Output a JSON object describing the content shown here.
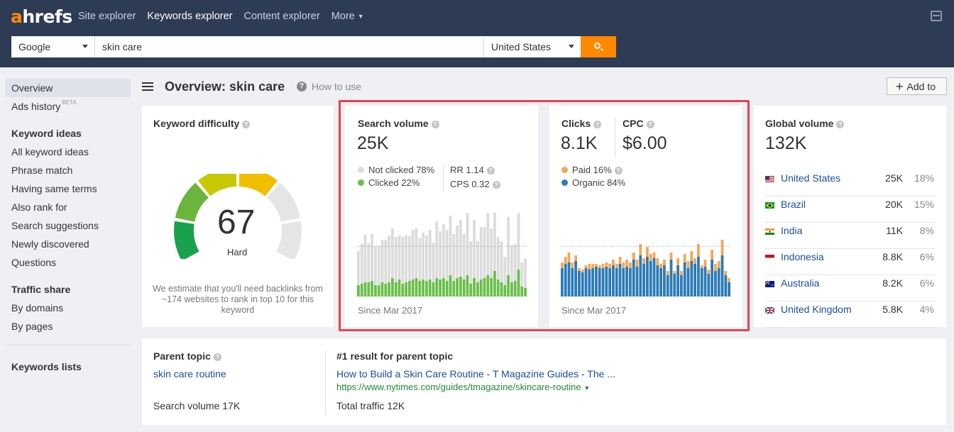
{
  "brand": {
    "logo_accent": "a",
    "logo_rest": "hrefs"
  },
  "nav": {
    "items": [
      "Site explorer",
      "Keywords explorer",
      "Content explorer",
      "More"
    ]
  },
  "search": {
    "engine": "Google",
    "keyword": "skin care",
    "country": "United States"
  },
  "sidebar": {
    "overview": "Overview",
    "ads_history": "Ads history",
    "beta": "BETA",
    "keyword_ideas_head": "Keyword ideas",
    "keyword_ideas": [
      "All keyword ideas",
      "Phrase match",
      "Having same terms",
      "Also rank for",
      "Search suggestions",
      "Newly discovered",
      "Questions"
    ],
    "traffic_share_head": "Traffic share",
    "traffic_share": [
      "By domains",
      "By pages"
    ],
    "keywords_lists": "Keywords lists"
  },
  "header": {
    "title": "Overview: skin care",
    "how_to_use": "How to use",
    "add_to": "Add to"
  },
  "kd": {
    "title": "Keyword difficulty",
    "value": "67",
    "label": "Hard",
    "score": 67,
    "desc": "We estimate that you'll need backlinks from ~174 websites to rank in top 10 for this keyword"
  },
  "sv": {
    "title": "Search volume",
    "value": "25K",
    "not_clicked": "Not clicked 78%",
    "clicked": "Clicked 22%",
    "rr": "RR 1.14",
    "cps": "CPS 0.32",
    "since": "Since Mar 2017",
    "colors": {
      "not_clicked": "#dcdcdc",
      "clicked": "#6abf4b"
    }
  },
  "clicks": {
    "title": "Clicks",
    "value": "8.1K",
    "cpc_title": "CPC",
    "cpc_value": "$6.00",
    "paid": "Paid 16%",
    "organic": "Organic 84%",
    "since": "Since Mar 2017",
    "colors": {
      "paid": "#f3a75a",
      "organic": "#2c7bb6"
    }
  },
  "gv": {
    "title": "Global volume",
    "value": "132K",
    "rows": [
      {
        "country": "United States",
        "volume": "25K",
        "pct": "18%",
        "flag": "us"
      },
      {
        "country": "Brazil",
        "volume": "20K",
        "pct": "15%",
        "flag": "br"
      },
      {
        "country": "India",
        "volume": "11K",
        "pct": "8%",
        "flag": "in"
      },
      {
        "country": "Indonesia",
        "volume": "8.8K",
        "pct": "6%",
        "flag": "id"
      },
      {
        "country": "Australia",
        "volume": "8.2K",
        "pct": "6%",
        "flag": "au"
      },
      {
        "country": "United Kingdom",
        "volume": "5.8K",
        "pct": "4%",
        "flag": "gb"
      }
    ]
  },
  "parent": {
    "title": "Parent topic",
    "topic": "skin care routine",
    "search_volume": "Search volume 17K",
    "result_title": "#1 result for parent topic",
    "result_link": "How to Build a Skin Care Routine - T Magazine Guides - The ...",
    "result_url": "https://www.nytimes.com/guides/tmagazine/skincare-routine",
    "total_traffic": "Total traffic 12K"
  },
  "chart_data": [
    {
      "type": "bar",
      "series": [
        {
          "name": "Not clicked",
          "values": [
            48,
            56,
            67,
            55,
            66,
            55,
            55,
            60,
            62,
            66,
            70,
            64,
            62,
            66,
            66,
            63,
            70,
            70,
            60,
            66,
            64,
            70,
            56,
            80,
            68,
            76,
            72,
            84,
            66,
            74,
            80,
            64,
            100,
            60,
            82,
            58,
            74,
            72,
            92,
            70,
            86,
            60,
            58,
            40,
            82,
            52,
            52,
            86,
            34,
            42
          ]
        },
        {
          "name": "Clicked",
          "values": [
            16,
            18,
            20,
            20,
            22,
            16,
            16,
            20,
            18,
            20,
            26,
            20,
            24,
            18,
            20,
            22,
            24,
            26,
            22,
            24,
            22,
            24,
            20,
            26,
            24,
            26,
            22,
            30,
            22,
            26,
            28,
            24,
            30,
            18,
            26,
            20,
            24,
            26,
            30,
            26,
            36,
            24,
            20,
            16,
            30,
            20,
            22,
            38,
            14,
            12
          ]
        }
      ]
    },
    {
      "type": "bar",
      "series": [
        {
          "name": "Organic",
          "values": [
            40,
            46,
            48,
            40,
            50,
            36,
            34,
            40,
            38,
            40,
            42,
            40,
            40,
            42,
            40,
            44,
            40,
            46,
            40,
            42,
            40,
            52,
            42,
            58,
            46,
            56,
            50,
            54,
            44,
            40,
            44,
            30,
            52,
            32,
            44,
            30,
            48,
            40,
            50,
            46,
            56,
            40,
            42,
            32,
            52,
            36,
            40,
            58,
            30,
            20
          ]
        },
        {
          "name": "Paid",
          "values": [
            8,
            10,
            14,
            8,
            8,
            4,
            4,
            4,
            8,
            6,
            4,
            4,
            6,
            6,
            6,
            8,
            6,
            10,
            8,
            10,
            8,
            10,
            10,
            16,
            8,
            14,
            10,
            8,
            10,
            6,
            8,
            6,
            10,
            4,
            10,
            6,
            12,
            10,
            14,
            8,
            18,
            4,
            10,
            6,
            14,
            10,
            10,
            22,
            6,
            6
          ]
        }
      ]
    }
  ]
}
